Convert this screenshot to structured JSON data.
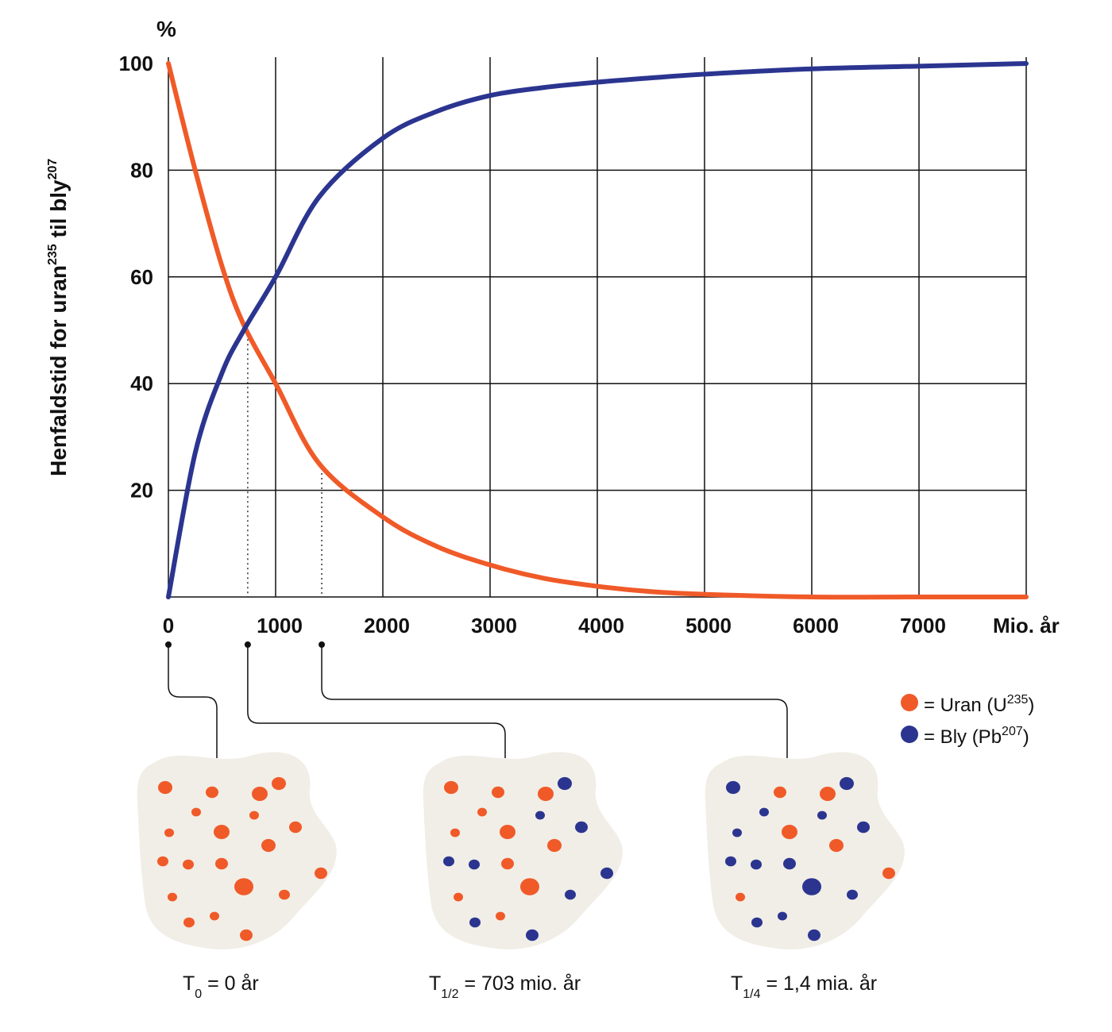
{
  "chart_data": {
    "type": "line",
    "y_unit_label": "%",
    "ylabel_parts": [
      "Henfaldstid for uran",
      "235",
      " til bly",
      "207"
    ],
    "xlabel": "Mio. år",
    "x_ticks": [
      0,
      1000,
      2000,
      3000,
      4000,
      5000,
      6000,
      7000
    ],
    "y_ticks": [
      20,
      40,
      60,
      80,
      100
    ],
    "xlim": [
      0,
      8000
    ],
    "ylim": [
      0,
      100
    ],
    "grid": true,
    "x": [
      0,
      250,
      500,
      703,
      1000,
      1406,
      2000,
      2500,
      3000,
      3500,
      4000,
      4500,
      5000,
      6000,
      7000,
      8000
    ],
    "series": [
      {
        "name": "Uran (U235)",
        "color": "#f05a28",
        "values": [
          100,
          80,
          62,
          51,
          40,
          25,
          15,
          9.5,
          6,
          3.5,
          2,
          1,
          0.5,
          0,
          0,
          0
        ]
      },
      {
        "name": "Bly (Pb207)",
        "color": "#2b3590",
        "values": [
          0,
          27,
          42,
          50,
          60,
          75,
          86,
          91,
          94,
          95.5,
          96.5,
          97.3,
          98,
          99,
          99.5,
          100
        ]
      }
    ],
    "markers": [
      {
        "x": 0
      },
      {
        "x": 740,
        "y": 51
      },
      {
        "x": 1430,
        "y": 25
      }
    ]
  },
  "legend": {
    "uran": {
      "pre": "= Uran (U",
      "sup": "235",
      "post": ")",
      "color": "#f05a28"
    },
    "bly": {
      "pre": "= Bly (Pb",
      "sup": "207",
      "post": ")",
      "color": "#2b3590"
    }
  },
  "samples": [
    {
      "t": "T",
      "sub": "0",
      "rest": " = 0 år"
    },
    {
      "t": "T",
      "sub": "1/2",
      "rest": " = 703 mio. år"
    },
    {
      "t": "T",
      "sub": "1/4",
      "rest": " = 1,4 mia. år"
    }
  ],
  "colors": {
    "uran": "#f05a28",
    "bly": "#2b3590",
    "grid": "#111111",
    "blob": "#f1eee7"
  }
}
